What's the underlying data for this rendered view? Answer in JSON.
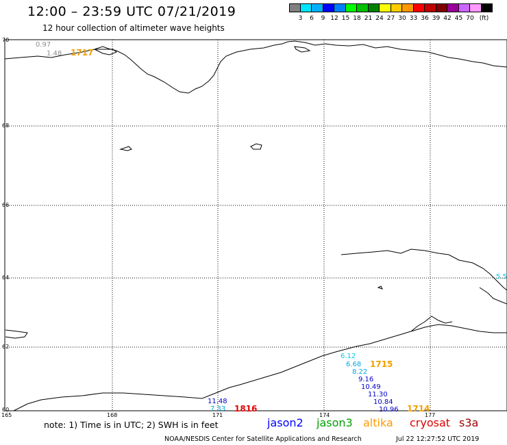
{
  "title": "12:00 – 23:59 UTC 07/21/2019",
  "subtitle": "12 hour collection of altimeter wave heights",
  "scale": {
    "colors": [
      "#808080",
      "#00e5ff",
      "#00b0ff",
      "#0000ff",
      "#0080ff",
      "#00ff00",
      "#00c000",
      "#008000",
      "#ffff00",
      "#ffcc00",
      "#ff9900",
      "#ff0000",
      "#c00000",
      "#800000",
      "#990099",
      "#cc66ff",
      "#ff99ff",
      "#000000"
    ],
    "labels": [
      "3",
      "6",
      "9",
      "12",
      "15",
      "18",
      "21",
      "24",
      "27",
      "30",
      "33",
      "36",
      "39",
      "42",
      "45",
      "70"
    ],
    "unit": "(ft)"
  },
  "map": {
    "lat_labels": [
      "70",
      "68",
      "66",
      "64",
      "62",
      "60"
    ],
    "lon_labels": [
      "165",
      "168",
      "171",
      "174",
      "177"
    ],
    "readings": [
      {
        "text": "0.97",
        "color": "#8c8c8c"
      },
      {
        "text": "1.48",
        "color": "#8c8c8c"
      },
      {
        "text": "5.5",
        "color": "#00c8e8"
      },
      {
        "text": "6.12",
        "color": "#00c8e8"
      },
      {
        "text": "6.68",
        "color": "#00a8e0"
      },
      {
        "text": "8.22",
        "color": "#00a8e0"
      },
      {
        "text": "9.16",
        "color": "#0000c8"
      },
      {
        "text": "10.49",
        "color": "#0000c8"
      },
      {
        "text": "11.30",
        "color": "#0000c8"
      },
      {
        "text": "10.84",
        "color": "#0000c8"
      },
      {
        "text": "10.96",
        "color": "#0000c8"
      },
      {
        "text": "11.48",
        "color": "#0000c8"
      },
      {
        "text": "7.33",
        "color": "#00a8e0"
      }
    ],
    "pass_times": [
      {
        "text": "1717",
        "color": "#f0a000"
      },
      {
        "text": "1715",
        "color": "#f0a000"
      },
      {
        "text": "1714",
        "color": "#f0a000"
      },
      {
        "text": "1816",
        "color": "#e00000"
      }
    ]
  },
  "note": "note: 1) Time is in UTC; 2) SWH is in feet",
  "legend": [
    {
      "name": "jason2",
      "color": "#0000ff"
    },
    {
      "name": "jason3",
      "color": "#00a000"
    },
    {
      "name": "altika",
      "color": "#ff9900"
    },
    {
      "name": "cryosat",
      "color": "#dd0000"
    },
    {
      "name": "s3a",
      "color": "#990000"
    }
  ],
  "credit": "NOAA/NESDIS Center for Satellite Applications and Research",
  "timestamp": "Jul 22 12:27:52 UTC 2019"
}
